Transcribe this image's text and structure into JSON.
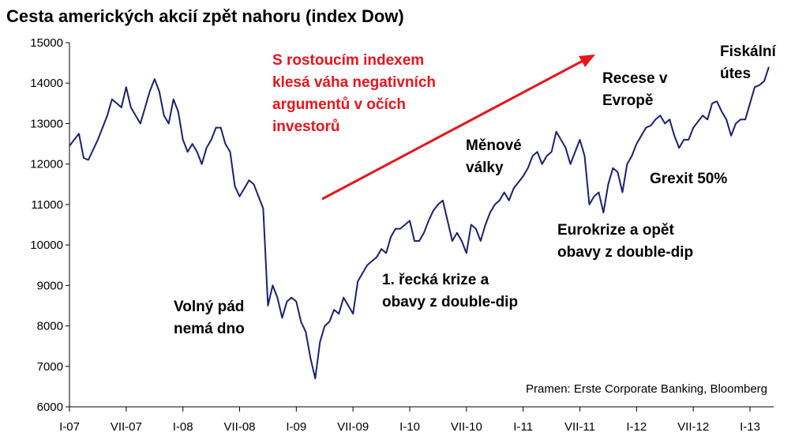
{
  "chart_data": {
    "type": "line",
    "title": "Cesta amerických akcií zpět nahoru (index Dow)",
    "categories": [
      "I-07",
      null,
      null,
      null,
      null,
      null,
      null,
      null,
      null,
      null,
      null,
      null,
      "VII-07",
      null,
      null,
      null,
      null,
      null,
      null,
      null,
      null,
      null,
      null,
      null,
      "I-08",
      null,
      null,
      null,
      null,
      null,
      null,
      null,
      null,
      null,
      null,
      null,
      "VII-08",
      null,
      null,
      null,
      null,
      null,
      null,
      null,
      null,
      null,
      null,
      null,
      "I-09",
      null,
      null,
      null,
      null,
      null,
      null,
      null,
      null,
      null,
      null,
      null,
      "VII-09",
      null,
      null,
      null,
      null,
      null,
      null,
      null,
      null,
      null,
      null,
      null,
      "I-10",
      null,
      null,
      null,
      null,
      null,
      null,
      null,
      null,
      null,
      null,
      null,
      "VII-10",
      null,
      null,
      null,
      null,
      null,
      null,
      null,
      null,
      null,
      null,
      null,
      "I-11",
      null,
      null,
      null,
      null,
      null,
      null,
      null,
      null,
      null,
      null,
      null,
      "VII-11",
      null,
      null,
      null,
      null,
      null,
      null,
      null,
      null,
      null,
      null,
      null,
      "I-12",
      null,
      null,
      null,
      null,
      null,
      null,
      null,
      null,
      null,
      null,
      null,
      "VII-12",
      null,
      null,
      null,
      null,
      null,
      null,
      null,
      null,
      null,
      null,
      null,
      "I-13",
      null,
      null,
      null,
      null
    ],
    "series": [
      {
        "name": "Dow",
        "color": "#1c2070",
        "values": [
          12450,
          12600,
          12750,
          12150,
          12100,
          12350,
          12600,
          12900,
          13200,
          13600,
          13500,
          13400,
          13900,
          13400,
          13200,
          13000,
          13400,
          13800,
          14100,
          13800,
          13200,
          13000,
          13600,
          13300,
          12600,
          12300,
          12500,
          12300,
          12000,
          12400,
          12600,
          12900,
          12900,
          12500,
          12300,
          11450,
          11200,
          11400,
          11600,
          11500,
          11200,
          10900,
          8500,
          9000,
          8700,
          8200,
          8600,
          8700,
          8600,
          8100,
          7850,
          7200,
          6700,
          7600,
          8000,
          8100,
          8400,
          8300,
          8700,
          8500,
          8300,
          9100,
          9300,
          9500,
          9600,
          9700,
          9900,
          9800,
          10200,
          10400,
          10400,
          10500,
          10600,
          10100,
          10100,
          10300,
          10600,
          10850,
          11000,
          11100,
          10600,
          10100,
          10300,
          10100,
          9800,
          10500,
          10400,
          10100,
          10500,
          10800,
          11000,
          11100,
          11300,
          11100,
          11400,
          11550,
          11700,
          11900,
          12200,
          12300,
          12000,
          12200,
          12300,
          12800,
          12600,
          12400,
          12000,
          12300,
          12600,
          12200,
          11000,
          11200,
          11300,
          10800,
          11500,
          11900,
          11800,
          11300,
          12000,
          12200,
          12500,
          12700,
          12900,
          12950,
          13100,
          13200,
          13000,
          13100,
          12700,
          12400,
          12600,
          12600,
          12900,
          13050,
          13200,
          13100,
          13500,
          13550,
          13300,
          13100,
          12700,
          13000,
          13100,
          13100,
          13500,
          13900,
          13950,
          14050,
          14400
        ]
      }
    ],
    "ylim": [
      6000,
      15000
    ],
    "yticks": [
      6000,
      7000,
      8000,
      9000,
      10000,
      11000,
      12000,
      13000,
      14000,
      15000
    ],
    "annotations": [
      {
        "color": "#e8141c",
        "lines": [
          "S rostoucím indexem",
          "klesá váha negativních",
          "argumentů v očích",
          "investorů"
        ]
      },
      {
        "color": "#000000",
        "lines": [
          "Volný pád",
          "nemá dno"
        ]
      },
      {
        "color": "#000000",
        "lines": [
          "1. řecká krize a",
          "obavy z double-dip"
        ]
      },
      {
        "color": "#000000",
        "lines": [
          "Měnové",
          "války"
        ]
      },
      {
        "color": "#000000",
        "lines": [
          "Eurokrize a opět",
          "obavy z double-dip"
        ]
      },
      {
        "color": "#000000",
        "lines": [
          "Recese v",
          "Evropě"
        ]
      },
      {
        "color": "#000000",
        "lines": [
          "Grexit 50%"
        ]
      },
      {
        "color": "#000000",
        "lines": [
          "Fiskální",
          "útes"
        ]
      }
    ],
    "source": "Pramen: Erste Corporate Banking, Bloomberg"
  }
}
